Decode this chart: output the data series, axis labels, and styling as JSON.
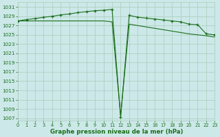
{
  "line1_x": [
    0,
    1,
    2,
    3,
    4,
    5,
    6,
    7,
    8,
    9,
    10,
    11,
    12,
    13,
    14,
    15,
    16,
    17,
    18,
    19,
    20,
    21,
    22,
    23
  ],
  "line1_y": [
    1028.0,
    1028.3,
    1028.5,
    1028.8,
    1029.0,
    1029.3,
    1029.5,
    1029.8,
    1030.0,
    1030.2,
    1030.3,
    1030.5,
    1007.2,
    1029.2,
    1028.8,
    1028.6,
    1028.4,
    1028.2,
    1028.0,
    1027.8,
    1027.3,
    1027.2,
    1025.2,
    1025.0
  ],
  "line2_x": [
    0,
    1,
    2,
    3,
    4,
    5,
    6,
    7,
    8,
    9,
    10,
    11,
    12,
    13,
    14,
    15,
    16,
    17,
    18,
    19,
    20,
    21,
    22,
    23
  ],
  "line2_y": [
    1028.0,
    1028.0,
    1028.0,
    1028.0,
    1028.0,
    1028.0,
    1028.0,
    1028.0,
    1028.0,
    1028.0,
    1028.0,
    1027.8,
    1007.5,
    1027.3,
    1027.0,
    1026.7,
    1026.4,
    1026.1,
    1025.8,
    1025.5,
    1025.2,
    1025.0,
    1024.8,
    1024.5
  ],
  "line_color": "#1a6e1a",
  "bg_color": "#cce8e8",
  "grid_color": "#aaccbb",
  "xlabel": "Graphe pression niveau de la mer (hPa)",
  "yticks": [
    1007,
    1009,
    1011,
    1013,
    1015,
    1017,
    1019,
    1021,
    1023,
    1025,
    1027,
    1029,
    1031
  ],
  "xticks": [
    0,
    1,
    2,
    3,
    4,
    5,
    6,
    7,
    8,
    9,
    10,
    11,
    12,
    13,
    14,
    15,
    16,
    17,
    18,
    19,
    20,
    21,
    22,
    23
  ],
  "ylim": [
    1006.5,
    1032.0
  ],
  "xlim": [
    0,
    23
  ]
}
